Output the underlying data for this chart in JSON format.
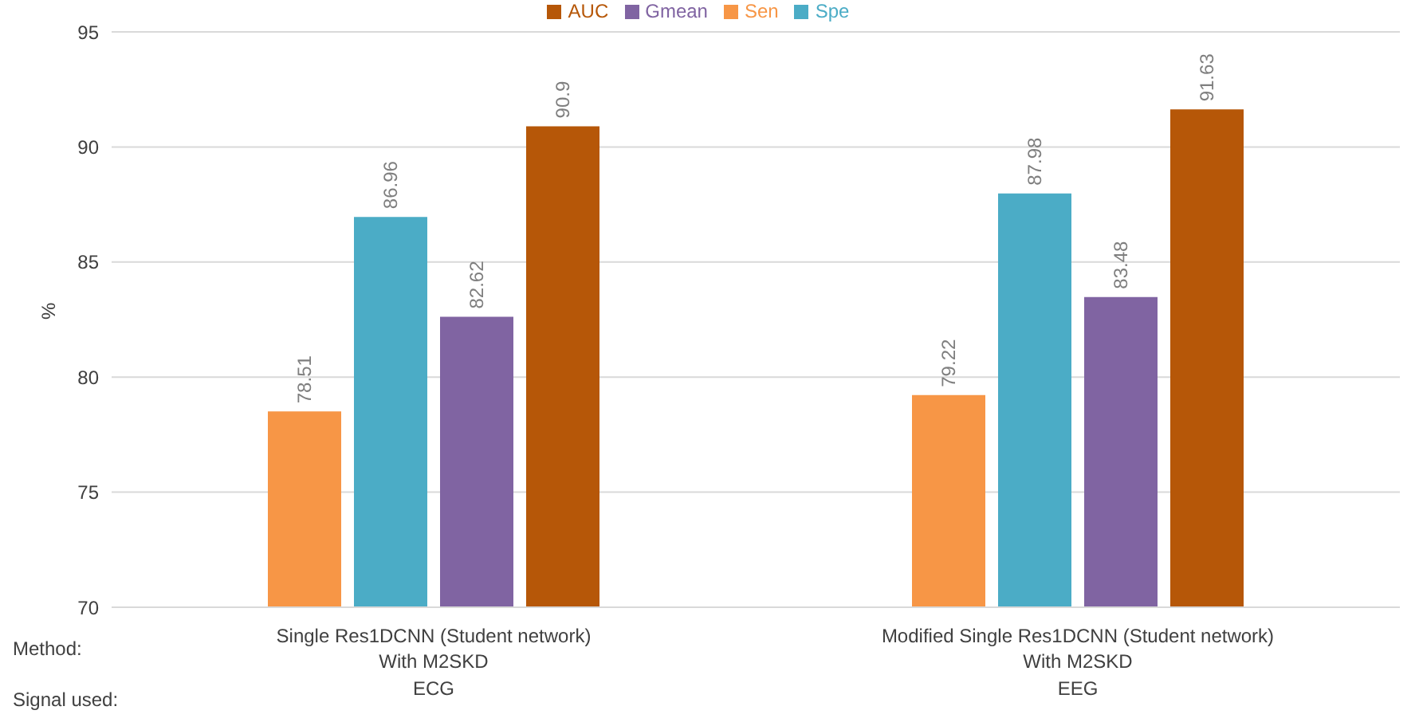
{
  "chart_data": {
    "type": "bar",
    "ylabel": "%",
    "categories": [
      "Single Res1DCNN (Student network)\nWith M2SKD\nECG",
      "Modified Single Res1DCNN (Student network)\nWith M2SKD\nEEG"
    ],
    "series": [
      {
        "name": "Sen",
        "color": "#f79646",
        "values": [
          78.51,
          79.22
        ]
      },
      {
        "name": "Spe",
        "color": "#4bacc6",
        "values": [
          86.96,
          87.98
        ]
      },
      {
        "name": "Gmean",
        "color": "#8064a2",
        "values": [
          82.62,
          83.48
        ]
      },
      {
        "name": "AUC",
        "color": "#b65708",
        "values": [
          90.9,
          91.63
        ]
      }
    ],
    "ylim": [
      70,
      95
    ],
    "yticks": [
      70,
      75,
      80,
      85,
      90,
      95
    ],
    "grid": "y",
    "legend": "top",
    "data_labels": true,
    "annotations": [
      "Method:",
      "Signal used:"
    ]
  }
}
